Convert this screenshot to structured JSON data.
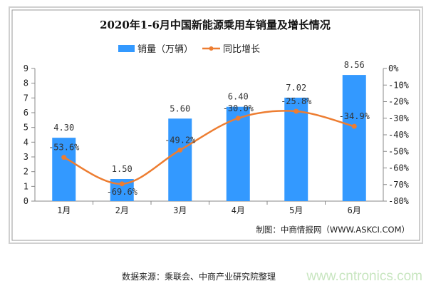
{
  "chart_data": {
    "type": "bar",
    "title": "2020年1-6月中国新能源乘用车销量及增长情况",
    "categories": [
      "1月",
      "2月",
      "3月",
      "4月",
      "5月",
      "6月"
    ],
    "series": [
      {
        "name": "销量（万辆）",
        "type": "bar",
        "axis": "left",
        "color": "#3399FF",
        "values": [
          4.3,
          1.5,
          5.6,
          6.4,
          7.02,
          8.56
        ],
        "labels": [
          "4.30",
          "1.50",
          "5.60",
          "6.40",
          "7.02",
          "8.56"
        ]
      },
      {
        "name": "同比增长",
        "type": "line",
        "axis": "right",
        "color": "#ED7D31",
        "values": [
          -53.6,
          -69.6,
          -49.2,
          -30.0,
          -25.8,
          -34.9
        ],
        "labels": [
          "-53.6%",
          "-69.6%",
          "-49.2%",
          "-30.0%",
          "-25.8%",
          "-34.9%"
        ]
      }
    ],
    "ylim": [
      0,
      9
    ],
    "yticks": [
      "0",
      "1",
      "2",
      "3",
      "4",
      "5",
      "6",
      "7",
      "8",
      "9"
    ],
    "y2lim": [
      -80,
      0
    ],
    "y2ticks": [
      "0%",
      "-10%",
      "-20%",
      "-30%",
      "-40%",
      "-50%",
      "-60%",
      "-70%",
      "-80%"
    ],
    "legend": "top",
    "grid": false
  },
  "credit": "制图：中商情报网（WWW.ASKCI.COM）",
  "source": "数据来源：乘联会、中商产业研究院整理",
  "watermark": "www.cntronics.com"
}
